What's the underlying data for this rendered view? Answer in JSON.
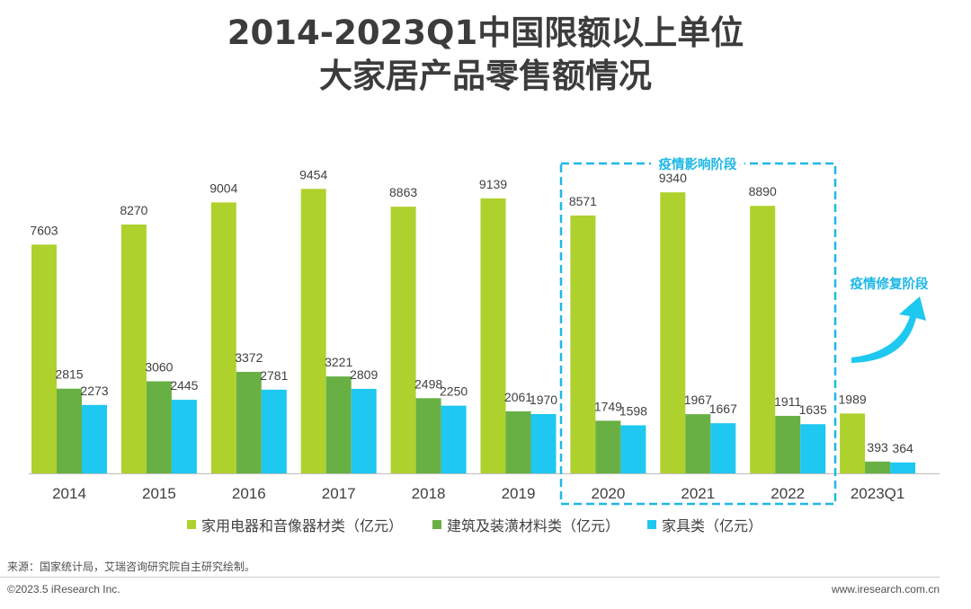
{
  "header": {
    "title_line1": "2014-2023Q1中国限额以上单位",
    "title_line2": "大家居产品零售额情况"
  },
  "chart_data": {
    "type": "bar",
    "categories": [
      "2014",
      "2015",
      "2016",
      "2017",
      "2018",
      "2019",
      "2020",
      "2021",
      "2022",
      "2023Q1"
    ],
    "series": [
      {
        "name": "家用电器和音像器材类（亿元）",
        "color": "#aed12e",
        "values": [
          7603,
          8270,
          9004,
          9454,
          8863,
          9139,
          8571,
          9340,
          8890,
          1989
        ]
      },
      {
        "name": "建筑及装潢材料类（亿元）",
        "color": "#69b044",
        "values": [
          2815,
          3060,
          3372,
          3221,
          2498,
          2061,
          1749,
          1967,
          1911,
          393
        ]
      },
      {
        "name": "家具类（亿元）",
        "color": "#1ec8f0",
        "values": [
          2273,
          2445,
          2781,
          2809,
          2250,
          1970,
          1598,
          1667,
          1635,
          364
        ]
      }
    ],
    "annotations": [
      {
        "text": "疫情影响阶段",
        "applies_to": [
          "2020",
          "2021",
          "2022"
        ]
      },
      {
        "text": "疫情修复阶段",
        "applies_to": [
          "2023Q1"
        ]
      }
    ],
    "ylim": [
      0,
      10000
    ],
    "legend_position": "bottom",
    "grid": false
  },
  "footer": {
    "source": "来源：国家统计局，艾瑞咨询研究院自主研究绘制。",
    "copyright": "©2023.5 iResearch Inc.",
    "website": "www.iresearch.com.cn"
  }
}
